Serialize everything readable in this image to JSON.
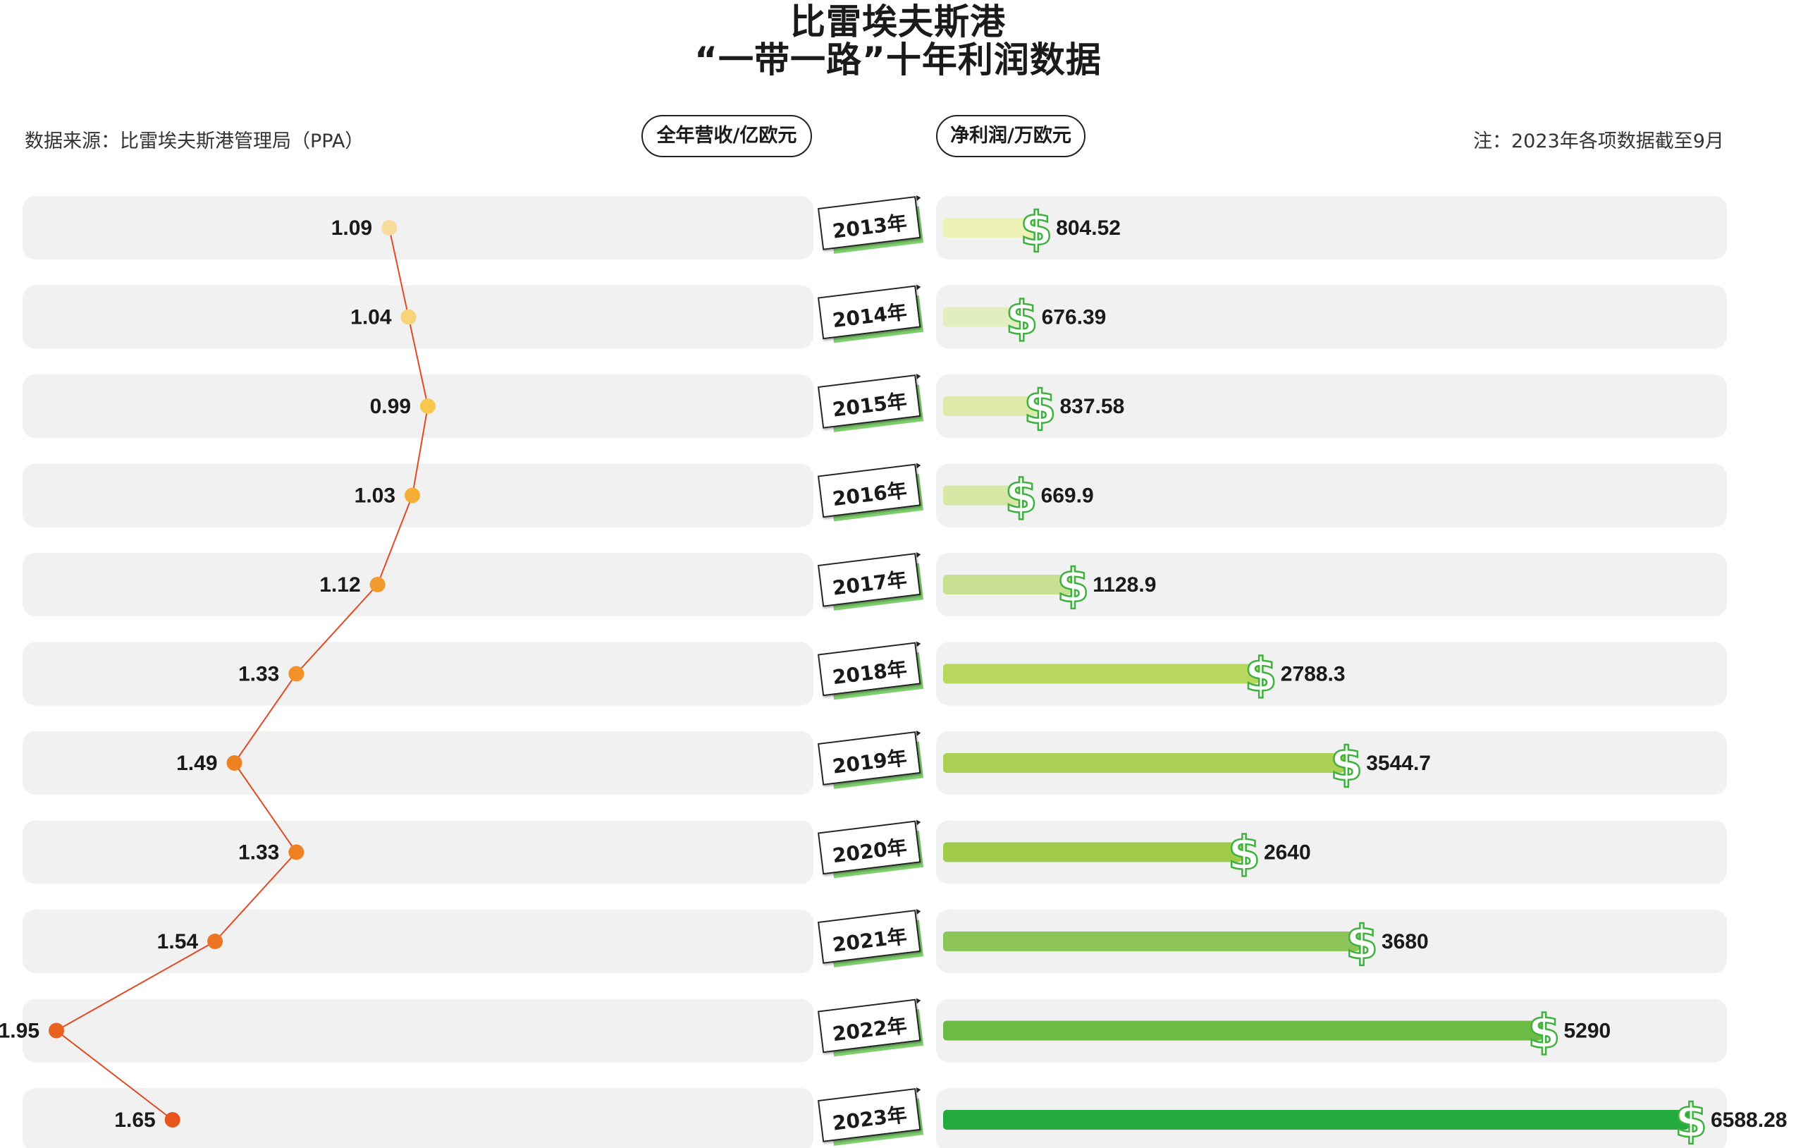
{
  "title": {
    "line1": "比雷埃夫斯港",
    "line2": "“一带一路”十年利润数据"
  },
  "source": "数据来源：比雷埃夫斯港管理局（PPA）",
  "note": "注：2023年各项数据截至9月",
  "legend": {
    "revenue": "全年营收/亿欧元",
    "profit": "净利润/万欧元"
  },
  "colors": {
    "revenue_line": "#e14a22",
    "revenue_points": [
      "#f9dc9b",
      "#f8d377",
      "#f6c84c",
      "#f4ae36",
      "#f29a2b",
      "#f19127",
      "#ee8124",
      "#ee8124",
      "#ec7422",
      "#e8621d",
      "#e6551b"
    ],
    "profit_bars": [
      "#ecf3b5",
      "#e3eec0",
      "#ddebaa",
      "#d6e8a3",
      "#c7e092",
      "#b8d75d",
      "#acd053",
      "#a0ca4a",
      "#8cc45a",
      "#6bbb45",
      "#25aa3e"
    ],
    "dollar": "#3fb13f",
    "row_bg": "#f1f1f1",
    "tag_shadow": "#7fcf6e"
  },
  "chart_data": [
    {
      "type": "line",
      "title": "全年营收/亿欧元",
      "categories": [
        "2013年",
        "2014年",
        "2015年",
        "2016年",
        "2017年",
        "2018年",
        "2019年",
        "2020年",
        "2021年",
        "2022年",
        "2023年"
      ],
      "values": [
        1.09,
        1.04,
        0.99,
        1.03,
        1.12,
        1.33,
        1.49,
        1.33,
        1.54,
        1.95,
        1.65
      ],
      "orientation": "vertical-categories, value axis increases to the left"
    },
    {
      "type": "bar",
      "title": "净利润/万欧元",
      "categories": [
        "2013年",
        "2014年",
        "2015年",
        "2016年",
        "2017年",
        "2018年",
        "2019年",
        "2020年",
        "2021年",
        "2022年",
        "2023年"
      ],
      "values": [
        804.52,
        676.39,
        837.58,
        669.9,
        1128.9,
        2788.3,
        3544.7,
        2640,
        3680,
        5290,
        6588.28
      ],
      "orientation": "horizontal"
    }
  ]
}
